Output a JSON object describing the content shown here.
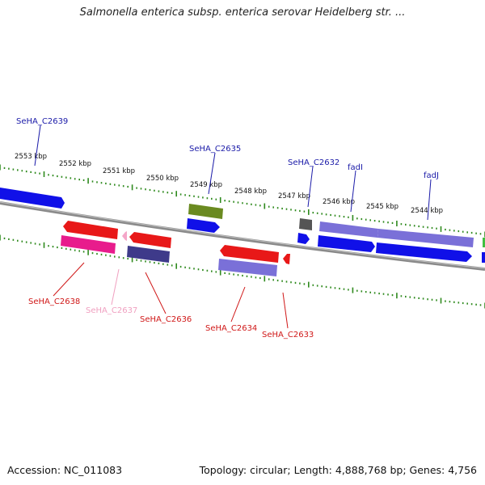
{
  "title": "Salmonella enterica subsp. enterica serovar Heidelberg str. ...",
  "accession": "Accession: NC_011083",
  "topology": "Topology: circular; Length: 4,888,768 bp; Genes: 4,756",
  "colors": {
    "backbone": "#8a8a8a",
    "tick": "#2f8a1e",
    "label_forward": "#1a1aa8",
    "label_reverse": "#d01818",
    "label_faint": "#f0a0c0"
  },
  "kbp_labels": [
    "2553 kbp",
    "2552 kbp",
    "2551 kbp",
    "2550 kbp",
    "2549 kbp",
    "2548 kbp",
    "2547 kbp",
    "2546 kbp",
    "2545 kbp",
    "2544 kbp"
  ],
  "forward_labels": [
    "SeHA_C2639",
    "SeHA_C2635",
    "SeHA_C2632",
    "fadI",
    "fadJ"
  ],
  "reverse_labels": [
    "SeHA_C2638",
    "SeHA_C2637",
    "SeHA_C2636",
    "SeHA_C2634",
    "SeHA_C2633"
  ],
  "gene_colors": {
    "blue": "#1010e8",
    "purple": "#7a70d8",
    "olive": "#6a8a20",
    "grey": "#555555",
    "red": "#e81818",
    "magenta": "#e81c8c",
    "pink": "#f4a6c8",
    "navy": "#3e3a8a",
    "green": "#40c040"
  }
}
